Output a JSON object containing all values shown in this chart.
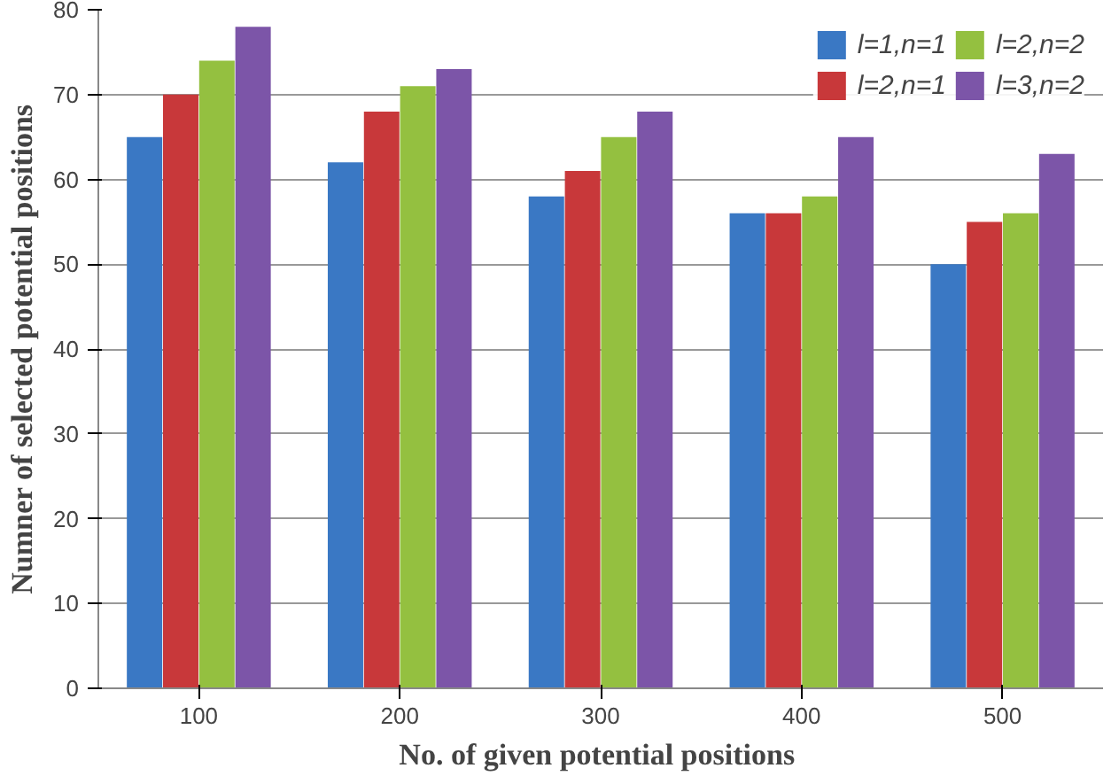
{
  "chart_data": {
    "type": "bar",
    "xlabel": "No. of  given potential positions",
    "ylabel": "Numner of selected potential positions",
    "categories": [
      "100",
      "200",
      "300",
      "400",
      "500"
    ],
    "series": [
      {
        "name": "l=1,n=1",
        "color": "#3a78c4",
        "values": [
          65,
          62,
          58,
          56,
          50
        ]
      },
      {
        "name": "l=2,n=1",
        "color": "#c8383a",
        "values": [
          70,
          68,
          61,
          56,
          55
        ]
      },
      {
        "name": "l=2,n=2",
        "color": "#94c040",
        "values": [
          74,
          71,
          65,
          58,
          56
        ]
      },
      {
        "name": "l=3,n=2",
        "color": "#7c55a8",
        "values": [
          78,
          73,
          68,
          65,
          63
        ]
      }
    ],
    "ylim": [
      0,
      80
    ],
    "yticks": [
      0,
      10,
      20,
      30,
      40,
      50,
      60,
      70,
      80
    ],
    "grid": "y",
    "legend": "top right"
  }
}
